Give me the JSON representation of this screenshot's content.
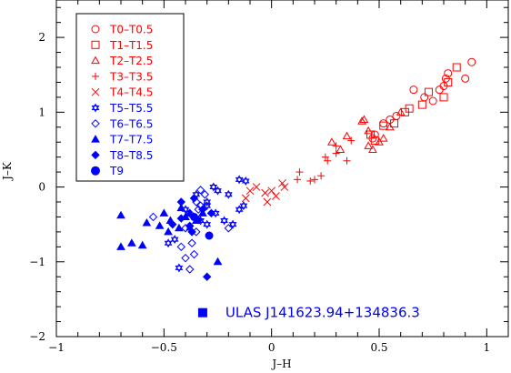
{
  "chart_data": {
    "type": "scatter",
    "title": "",
    "xlabel": "J–H",
    "ylabel": "J–K",
    "xlim": [
      -1,
      1.1
    ],
    "ylim": [
      -2,
      2.5
    ],
    "x_ticks_major": [
      -1,
      -0.5,
      0,
      0.5,
      1
    ],
    "x_tick_labels": [
      "−1",
      "−0.5",
      "0",
      "0.5",
      "1"
    ],
    "y_ticks_major": [
      -2,
      -1,
      0,
      1,
      2
    ],
    "y_tick_labels": [
      "−2",
      "−1",
      "0",
      "1",
      "2"
    ],
    "legend_position": "top-left",
    "colors": {
      "red": "#ff0000",
      "blue": "#0000ff"
    },
    "series": [
      {
        "name": "T0–T0.5",
        "marker": "circle-open",
        "color": "#ff0000",
        "points": [
          [
            0.66,
            1.3
          ],
          [
            0.71,
            1.2
          ],
          [
            0.75,
            1.15
          ],
          [
            0.78,
            1.3
          ],
          [
            0.8,
            1.35
          ],
          [
            0.81,
            1.45
          ],
          [
            0.82,
            1.52
          ],
          [
            0.9,
            1.45
          ],
          [
            0.93,
            1.67
          ],
          [
            0.55,
            0.9
          ],
          [
            0.58,
            0.95
          ],
          [
            0.48,
            0.7
          ],
          [
            0.47,
            0.65
          ],
          [
            0.52,
            0.85
          ]
        ]
      },
      {
        "name": "T1–T1.5",
        "marker": "square-open",
        "color": "#ff0000",
        "points": [
          [
            0.46,
            0.7
          ],
          [
            0.52,
            0.82
          ],
          [
            0.57,
            0.85
          ],
          [
            0.64,
            1.05
          ],
          [
            0.7,
            1.1
          ],
          [
            0.73,
            1.27
          ],
          [
            0.8,
            1.2
          ],
          [
            0.82,
            1.4
          ],
          [
            0.86,
            1.6
          ],
          [
            0.62,
            1.0
          ],
          [
            0.48,
            0.62
          ]
        ]
      },
      {
        "name": "T2–T2.5",
        "marker": "triangle-open",
        "color": "#ff0000",
        "points": [
          [
            0.28,
            0.6
          ],
          [
            0.35,
            0.68
          ],
          [
            0.42,
            0.88
          ],
          [
            0.45,
            0.55
          ],
          [
            0.47,
            0.5
          ],
          [
            0.5,
            0.6
          ],
          [
            0.52,
            0.65
          ],
          [
            0.55,
            0.8
          ],
          [
            0.43,
            0.9
          ],
          [
            0.45,
            0.75
          ],
          [
            0.6,
            1.0
          ],
          [
            0.32,
            0.5
          ]
        ]
      },
      {
        "name": "T3–T3.5",
        "marker": "plus",
        "color": "#ff0000",
        "points": [
          [
            0.13,
            0.2
          ],
          [
            0.23,
            0.15
          ],
          [
            0.26,
            0.35
          ],
          [
            0.3,
            0.55
          ],
          [
            0.3,
            0.45
          ],
          [
            0.37,
            0.62
          ],
          [
            0.2,
            0.1
          ],
          [
            0.18,
            0.08
          ],
          [
            0.25,
            0.4
          ],
          [
            0.35,
            0.35
          ],
          [
            0.12,
            0.1
          ]
        ]
      },
      {
        "name": "T4–T4.5",
        "marker": "cross",
        "color": "#ff0000",
        "points": [
          [
            -0.07,
            0.0
          ],
          [
            -0.03,
            -0.08
          ],
          [
            -0.02,
            -0.2
          ],
          [
            0.02,
            -0.12
          ],
          [
            0.05,
            0.05
          ],
          [
            -0.1,
            -0.05
          ],
          [
            0.06,
            0.0
          ],
          [
            -0.12,
            -0.15
          ],
          [
            0.0,
            -0.05
          ]
        ]
      },
      {
        "name": "T5–T5.5",
        "marker": "star-open",
        "color": "#0000ff",
        "points": [
          [
            -0.15,
            0.1
          ],
          [
            -0.12,
            0.08
          ],
          [
            -0.25,
            -0.05
          ],
          [
            -0.2,
            -0.1
          ],
          [
            -0.3,
            -0.2
          ],
          [
            -0.35,
            -0.1
          ],
          [
            -0.26,
            -0.35
          ],
          [
            -0.22,
            -0.45
          ],
          [
            -0.13,
            -0.25
          ],
          [
            -0.18,
            -0.5
          ],
          [
            -0.4,
            -0.3
          ],
          [
            -0.45,
            -0.7
          ],
          [
            -0.48,
            -0.75
          ],
          [
            -0.43,
            -1.08
          ],
          [
            -0.3,
            -0.25
          ],
          [
            -0.27,
            0.0
          ],
          [
            -0.33,
            -0.45
          ],
          [
            -0.15,
            -0.3
          ],
          [
            -0.38,
            -0.55
          ],
          [
            -0.3,
            -0.5
          ]
        ]
      },
      {
        "name": "T6–T6.5",
        "marker": "diamond-open",
        "color": "#0000ff",
        "points": [
          [
            -0.55,
            -0.4
          ],
          [
            -0.38,
            -0.35
          ],
          [
            -0.35,
            -0.6
          ],
          [
            -0.37,
            -0.75
          ],
          [
            -0.36,
            -0.9
          ],
          [
            -0.4,
            -0.95
          ],
          [
            -0.38,
            -1.1
          ],
          [
            -0.2,
            -0.55
          ],
          [
            -0.33,
            -0.25
          ],
          [
            -0.4,
            -0.55
          ],
          [
            -0.42,
            -0.8
          ],
          [
            -0.34,
            -0.3
          ],
          [
            -0.31,
            -0.1
          ],
          [
            -0.35,
            -0.2
          ],
          [
            -0.33,
            -0.04
          ]
        ]
      },
      {
        "name": "T7–T7.5",
        "marker": "triangle-filled",
        "color": "#0000ff",
        "points": [
          [
            -0.7,
            -0.38
          ],
          [
            -0.7,
            -0.8
          ],
          [
            -0.65,
            -0.75
          ],
          [
            -0.6,
            -0.78
          ],
          [
            -0.58,
            -0.48
          ],
          [
            -0.52,
            -0.52
          ],
          [
            -0.5,
            -0.35
          ],
          [
            -0.47,
            -0.45
          ],
          [
            -0.43,
            -0.55
          ],
          [
            -0.42,
            -0.28
          ],
          [
            -0.38,
            -0.35
          ],
          [
            -0.35,
            -0.45
          ],
          [
            -0.32,
            -0.35
          ],
          [
            -0.25,
            -1.0
          ],
          [
            -0.48,
            -0.6
          ],
          [
            -0.4,
            -0.4
          ]
        ]
      },
      {
        "name": "T8–T8.5",
        "marker": "diamond-filled",
        "color": "#0000ff",
        "points": [
          [
            -0.46,
            -0.5
          ],
          [
            -0.42,
            -0.42
          ],
          [
            -0.38,
            -0.52
          ],
          [
            -0.34,
            -0.44
          ],
          [
            -0.32,
            -0.3
          ],
          [
            -0.36,
            -0.15
          ],
          [
            -0.28,
            -0.35
          ],
          [
            -0.3,
            -1.2
          ],
          [
            -0.42,
            -0.2
          ],
          [
            -0.37,
            -0.6
          ]
        ]
      },
      {
        "name": "T9",
        "marker": "circle-filled",
        "color": "#0000ff",
        "points": [
          [
            -0.36,
            -0.4
          ],
          [
            -0.29,
            -0.65
          ]
        ]
      }
    ],
    "annotation": {
      "label": "ULAS  J141623.94+134836.3",
      "marker": "square-filled",
      "color": "#0000ff",
      "x": -0.32,
      "y": -1.68
    }
  }
}
